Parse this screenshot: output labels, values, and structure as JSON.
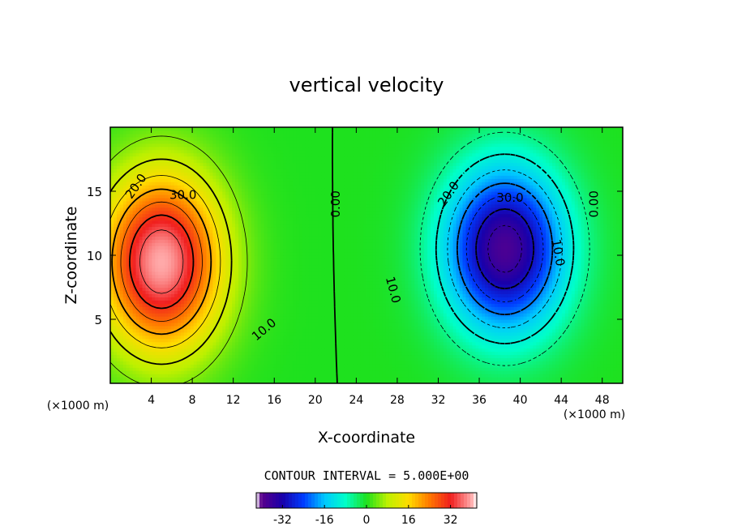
{
  "chart_data": {
    "type": "heatmap",
    "title": "vertical velocity",
    "xlabel": "X-coordinate",
    "ylabel": "Z-coordinate",
    "x_unit": "(×1000 m)",
    "z_unit": "(×1000 m)",
    "xlim": [
      0,
      50
    ],
    "ylim": [
      0,
      20
    ],
    "x_ticks": [
      4,
      8,
      12,
      16,
      20,
      24,
      28,
      32,
      36,
      40,
      44,
      48
    ],
    "x_tick_labels": [
      "4",
      "8",
      "12",
      "16",
      "20",
      "24",
      "28",
      "32",
      "36",
      "40",
      "44",
      "48"
    ],
    "y_ticks": [
      5,
      10,
      15
    ],
    "y_tick_labels": [
      "5",
      "10",
      "15"
    ],
    "contour_interval_text": "CONTOUR INTERVAL = 5.000E+00",
    "contour_interval": 5,
    "contour_labels": [
      {
        "text": "20.0",
        "x": 2.5,
        "z": 15.4,
        "angle": -55
      },
      {
        "text": "30.0",
        "x": 7.1,
        "z": 14.7,
        "angle": 0
      },
      {
        "text": "10.0",
        "x": 15.0,
        "z": 4.2,
        "angle": -40
      },
      {
        "text": "0.00",
        "x": 22.0,
        "z": 14.0,
        "angle": -90
      },
      {
        "text": "20.0",
        "x": 33.0,
        "z": 14.8,
        "angle": -55
      },
      {
        "text": "30.0",
        "x": 39.0,
        "z": 14.5,
        "angle": 0
      },
      {
        "text": "10.0",
        "x": 43.7,
        "z": 10.2,
        "angle": 80
      },
      {
        "text": "10.0",
        "x": 27.6,
        "z": 7.3,
        "angle": 75
      },
      {
        "text": "0.00",
        "x": 47.2,
        "z": 14.0,
        "angle": -90
      }
    ],
    "cells": [
      {
        "name": "updraft",
        "x": 5.0,
        "z": 9.5,
        "peak": 40,
        "sx": 5.8,
        "sz": 6.8
      },
      {
        "name": "downdraft",
        "x": 38.5,
        "z": 10.5,
        "peak": -38,
        "sx": 5.8,
        "sz": 6.4
      }
    ],
    "colorbar": {
      "range": [
        -42,
        42
      ],
      "ticks": [
        -32,
        -16,
        0,
        16,
        32
      ],
      "tick_labels": [
        "-32",
        "-16",
        "0",
        "16",
        "32"
      ]
    }
  }
}
